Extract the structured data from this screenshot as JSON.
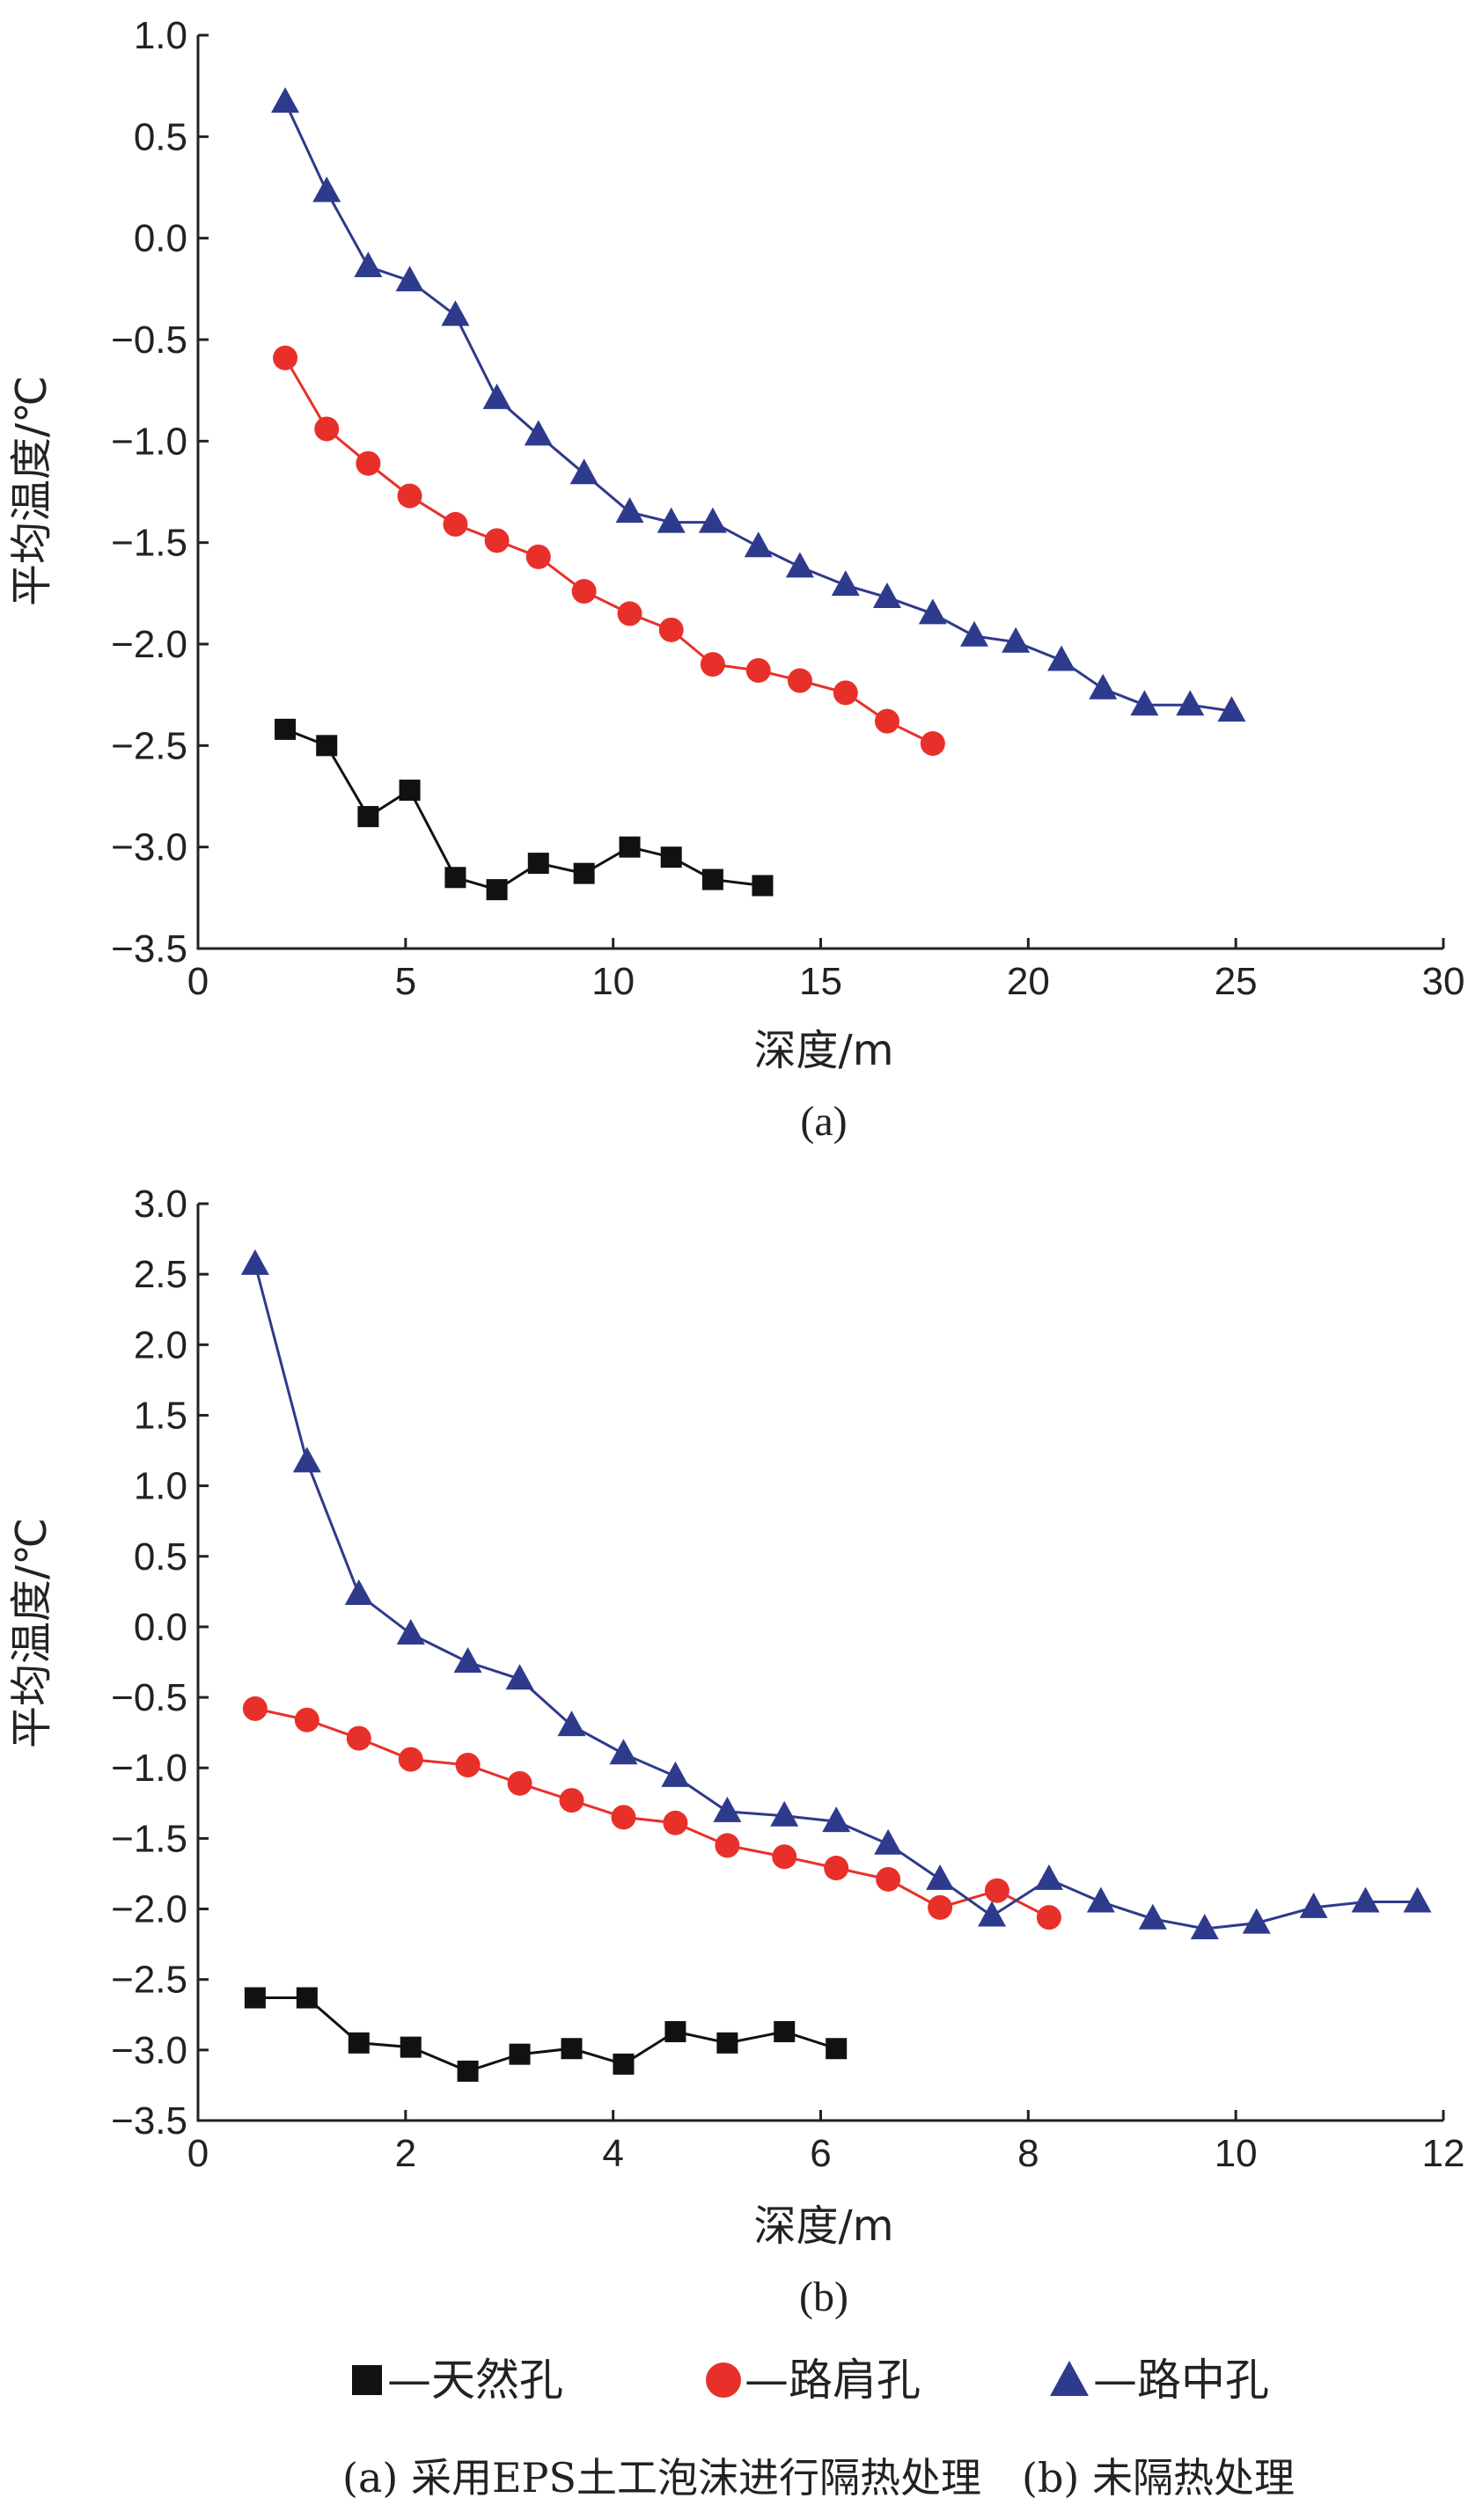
{
  "chart_data": [
    {
      "type": "line",
      "panel_label": "(a)",
      "xlabel": "深度/m",
      "ylabel": "平均温度/℃",
      "xlim": [
        0,
        30
      ],
      "ylim": [
        -3.5,
        1.0
      ],
      "xticks": [
        0,
        5,
        10,
        15,
        20,
        25,
        30
      ],
      "xtick_labels": [
        "0",
        "5",
        "10",
        "15",
        "20",
        "25",
        "30"
      ],
      "yticks": [
        1.0,
        0.5,
        0.0,
        -0.5,
        -1.0,
        -1.5,
        -2.0,
        -2.5,
        -3.0,
        -3.5
      ],
      "ytick_labels": [
        "1.0",
        "0.5",
        "0.0",
        "−0.5",
        "−1.0",
        "−1.5",
        "−2.0",
        "−2.5",
        "−3.0",
        "−3.5"
      ],
      "series": [
        {
          "name": "天然孔",
          "marker": "square",
          "color": "#111111",
          "x": [
            2.1,
            3.1,
            4.1,
            5.1,
            6.2,
            7.2,
            8.2,
            9.3,
            10.4,
            11.4,
            12.4,
            13.6
          ],
          "y": [
            -2.42,
            -2.5,
            -2.85,
            -2.72,
            -3.15,
            -3.21,
            -3.08,
            -3.13,
            -3.0,
            -3.05,
            -3.16,
            -3.19
          ]
        },
        {
          "name": "路肩孔",
          "marker": "circle",
          "color": "#e8302a",
          "x": [
            2.1,
            3.1,
            4.1,
            5.1,
            6.2,
            7.2,
            8.2,
            9.3,
            10.4,
            11.4,
            12.4,
            13.5,
            14.5,
            15.6,
            16.6,
            17.7
          ],
          "y": [
            -0.59,
            -0.94,
            -1.11,
            -1.27,
            -1.41,
            -1.49,
            -1.57,
            -1.74,
            -1.85,
            -1.93,
            -2.1,
            -2.13,
            -2.18,
            -2.24,
            -2.38,
            -2.49
          ]
        },
        {
          "name": "路中孔",
          "marker": "triangle",
          "color": "#2e3a8c",
          "x": [
            2.1,
            3.1,
            4.1,
            5.1,
            6.2,
            7.2,
            8.2,
            9.3,
            10.4,
            11.4,
            12.4,
            13.5,
            14.5,
            15.6,
            16.6,
            17.7,
            18.7,
            19.7,
            20.8,
            21.8,
            22.8,
            23.9,
            24.9
          ],
          "y": [
            0.67,
            0.23,
            -0.14,
            -0.21,
            -0.38,
            -0.79,
            -0.97,
            -1.16,
            -1.35,
            -1.4,
            -1.4,
            -1.52,
            -1.62,
            -1.71,
            -1.77,
            -1.85,
            -1.96,
            -1.99,
            -2.08,
            -2.22,
            -2.3,
            -2.3,
            -2.33
          ]
        }
      ]
    },
    {
      "type": "line",
      "panel_label": "(b)",
      "xlabel": "深度/m",
      "ylabel": "平均温度/℃",
      "xlim": [
        0,
        12
      ],
      "ylim": [
        -3.5,
        3.0
      ],
      "xticks": [
        0,
        2,
        4,
        6,
        8,
        10,
        12
      ],
      "xtick_labels": [
        "0",
        "2",
        "4",
        "6",
        "8",
        "10",
        "12"
      ],
      "yticks": [
        3.0,
        2.5,
        2.0,
        1.5,
        1.0,
        0.5,
        0.0,
        -0.5,
        -1.0,
        -1.5,
        -2.0,
        -2.5,
        -3.0,
        -3.5
      ],
      "ytick_labels": [
        "3.0",
        "2.5",
        "2.0",
        "1.5",
        "1.0",
        "0.5",
        "0.0",
        "−0.5",
        "−1.0",
        "−1.5",
        "−2.0",
        "−2.5",
        "−3.0",
        "−3.5"
      ],
      "series": [
        {
          "name": "天然孔",
          "marker": "square",
          "color": "#111111",
          "x": [
            0.55,
            1.05,
            1.55,
            2.05,
            2.6,
            3.1,
            3.6,
            4.1,
            4.6,
            5.1,
            5.65,
            6.15
          ],
          "y": [
            -2.63,
            -2.63,
            -2.95,
            -2.98,
            -3.15,
            -3.03,
            -2.99,
            -3.1,
            -2.87,
            -2.95,
            -2.87,
            -2.99
          ]
        },
        {
          "name": "路肩孔",
          "marker": "circle",
          "color": "#e8302a",
          "x": [
            0.55,
            1.05,
            1.55,
            2.05,
            2.6,
            3.1,
            3.6,
            4.1,
            4.6,
            5.1,
            5.65,
            6.15,
            6.65,
            7.15,
            7.7,
            8.2
          ],
          "y": [
            -0.58,
            -0.66,
            -0.79,
            -0.94,
            -0.98,
            -1.11,
            -1.23,
            -1.35,
            -1.39,
            -1.55,
            -1.63,
            -1.71,
            -1.79,
            -1.99,
            -1.87,
            -2.06
          ]
        },
        {
          "name": "路中孔",
          "marker": "triangle",
          "color": "#2e3a8c",
          "x": [
            0.55,
            1.05,
            1.55,
            2.05,
            2.6,
            3.1,
            3.6,
            4.1,
            4.6,
            5.1,
            5.65,
            6.15,
            6.65,
            7.15,
            7.65,
            8.2,
            8.7,
            9.2,
            9.7,
            10.2,
            10.75,
            11.25,
            11.75
          ],
          "y": [
            2.57,
            1.17,
            0.23,
            -0.05,
            -0.25,
            -0.37,
            -0.7,
            -0.9,
            -1.06,
            -1.31,
            -1.34,
            -1.38,
            -1.54,
            -1.79,
            -2.05,
            -1.79,
            -1.95,
            -2.07,
            -2.14,
            -2.1,
            -1.99,
            -1.95,
            -1.95
          ]
        }
      ]
    }
  ],
  "legend": [
    {
      "marker": "square",
      "color": "#111111",
      "label": "—天然孔"
    },
    {
      "marker": "circle",
      "color": "#e8302a",
      "label": "—路肩孔"
    },
    {
      "marker": "triangle",
      "color": "#2e3a8c",
      "label": "—路中孔"
    }
  ],
  "caption": "(a) 采用EPS土工泡沫进行隔热处理　(b) 未隔热处理"
}
